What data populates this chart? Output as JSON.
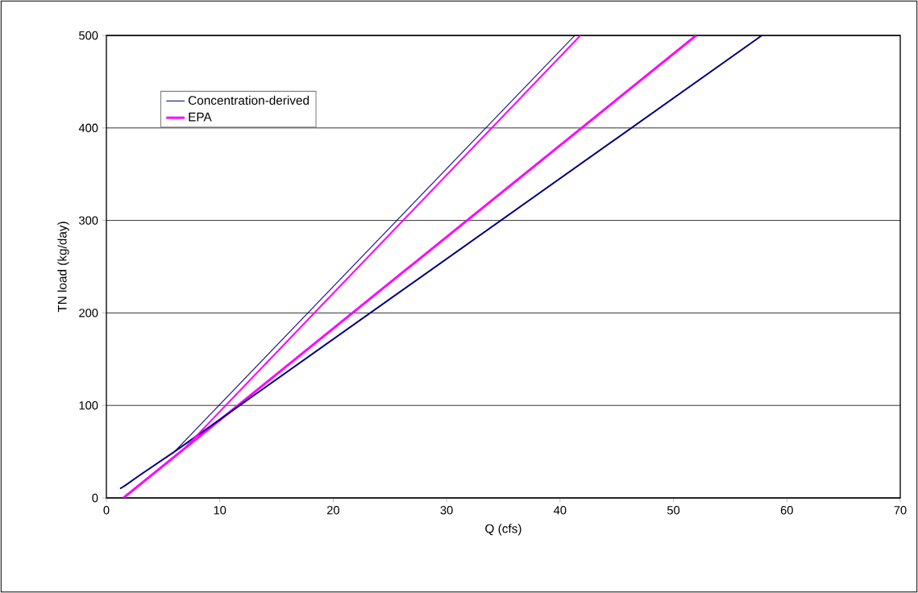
{
  "chart_data": {
    "type": "line",
    "xlabel": "Q (cfs)",
    "ylabel": "TN load (kg/day)",
    "xlim": [
      0,
      70
    ],
    "xticks": [
      0,
      10,
      20,
      30,
      40,
      50,
      60,
      70
    ],
    "ylim": [
      0,
      500
    ],
    "yticks": [
      0,
      100,
      200,
      300,
      400,
      500
    ],
    "grid": "y",
    "legend": "top left",
    "marker": "none",
    "line_style": "solid",
    "series": [
      {
        "name": "Concentration-derived",
        "color": "#000080",
        "x": [
          6,
          41.3
        ],
        "values": [
          50,
          500
        ]
      },
      {
        "name": "EPA",
        "color": "#ff00ff",
        "x": [
          1.5,
          52
        ],
        "values": [
          0,
          500
        ]
      },
      {
        "color": "#000080",
        "x": [
          1.2,
          1.6,
          3,
          6,
          57.8
        ],
        "values": [
          10,
          13,
          25,
          50,
          500
        ]
      },
      {
        "color": "#ff00ff",
        "x": [
          7,
          41.8
        ],
        "values": [
          55,
          500
        ]
      }
    ]
  }
}
